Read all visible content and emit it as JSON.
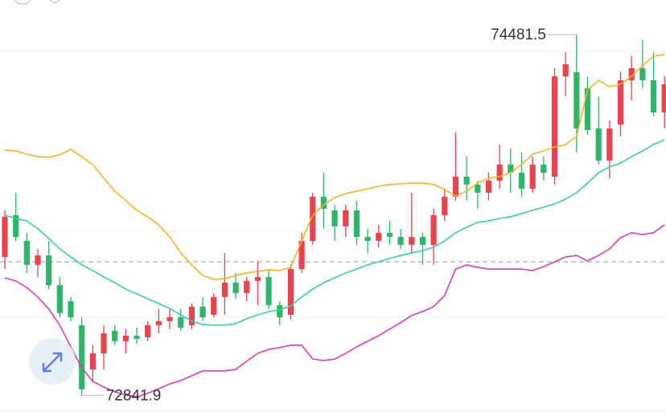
{
  "chart_data": {
    "type": "candlestick",
    "up_color": "#e8434f",
    "down_color": "#2fb56a",
    "ylim": [
      72748,
      74639
    ],
    "open": [
      73471,
      73661,
      73544,
      73435,
      73478,
      73343,
      73270,
      73161,
      72960,
      73033,
      73135,
      73088,
      73113,
      73106,
      73161,
      73179,
      73197,
      73161,
      73245,
      73208,
      73289,
      73354,
      73307,
      73362,
      73380,
      73252,
      73208,
      73416,
      73544,
      73745,
      73683,
      73610,
      73683,
      73562,
      73544,
      73581,
      73562,
      73526,
      73562,
      73526,
      73661,
      73745,
      73836,
      73800,
      73763,
      73818,
      73891,
      73854,
      73781,
      73891,
      73836,
      74292,
      74311,
      74238,
      74055,
      73909,
      74073,
      74274,
      74329,
      74274,
      74128
    ],
    "high": [
      73683,
      73763,
      73581,
      73508,
      73544,
      73380,
      73289,
      73197,
      73070,
      73161,
      73161,
      73143,
      73150,
      73179,
      73234,
      73234,
      73234,
      73259,
      73289,
      73307,
      73489,
      73398,
      73380,
      73453,
      73416,
      73270,
      73435,
      73581,
      73763,
      73854,
      73708,
      73708,
      73727,
      73599,
      73617,
      73635,
      73599,
      73763,
      73581,
      73690,
      73781,
      74037,
      73927,
      73818,
      73854,
      73982,
      73964,
      73946,
      73927,
      73927,
      74329,
      74402,
      74481.5,
      74292,
      74201,
      74092,
      74311,
      74384,
      74457,
      74402,
      74292
    ],
    "low": [
      73416,
      73544,
      73398,
      73380,
      73325,
      73197,
      73179,
      72841.9,
      72905,
      72960,
      73070,
      73033,
      73077,
      73088,
      73124,
      73143,
      73135,
      73143,
      73179,
      73197,
      73208,
      73281,
      73270,
      73252,
      73234,
      73161,
      73186,
      73398,
      73526,
      73599,
      73544,
      73562,
      73526,
      73489,
      73515,
      73526,
      73508,
      73489,
      73435,
      73435,
      73635,
      73727,
      73727,
      73690,
      73727,
      73781,
      73763,
      73745,
      73763,
      73818,
      73800,
      74201,
      73946,
      74026,
      73891,
      73829,
      74019,
      74183,
      74238,
      74110,
      74055
    ],
    "close": [
      73654,
      73562,
      73435,
      73478,
      73343,
      73216,
      73197,
      72869,
      73033,
      73124,
      73088,
      73113,
      73099,
      73161,
      73179,
      73197,
      73150,
      73245,
      73197,
      73289,
      73354,
      73307,
      73362,
      73380,
      73252,
      73197,
      73416,
      73544,
      73745,
      73690,
      73610,
      73683,
      73562,
      73544,
      73581,
      73562,
      73526,
      73562,
      73526,
      73661,
      73745,
      73836,
      73800,
      73763,
      73818,
      73891,
      73854,
      73781,
      73891,
      73854,
      74292,
      74347,
      74055,
      74048,
      73909,
      74055,
      74274,
      74329,
      74274,
      74128,
      74256
    ],
    "series": [
      {
        "color": "#efb42a",
        "values": [
          73956,
          73953,
          73938,
          73927,
          73924,
          73935,
          73960,
          73927,
          73891,
          73829,
          73770,
          73727,
          73683,
          73654,
          73617,
          73562,
          73489,
          73435,
          73387,
          73369,
          73372,
          73387,
          73398,
          73405,
          73413,
          73409,
          73424,
          73544,
          73661,
          73708,
          73741,
          73759,
          73770,
          73781,
          73792,
          73800,
          73803,
          73807,
          73807,
          73800,
          73778,
          73748,
          73770,
          73807,
          73829,
          73836,
          73854,
          73891,
          73938,
          73953,
          73971,
          73982,
          74019,
          74230,
          74274,
          74245,
          74256,
          74292,
          74340,
          74384,
          74391
        ]
      },
      {
        "color": "#3ccba5",
        "values": [
          73661,
          73646,
          73635,
          73599,
          73555,
          73508,
          73471,
          73435,
          73409,
          73380,
          73354,
          73325,
          73303,
          73281,
          73259,
          73237,
          73208,
          73179,
          73164,
          73161,
          73161,
          73168,
          73190,
          73208,
          73223,
          73230,
          73248,
          73289,
          73325,
          73354,
          73376,
          73398,
          73416,
          73435,
          73449,
          73464,
          73478,
          73489,
          73500,
          73515,
          73544,
          73581,
          73606,
          73628,
          73635,
          73646,
          73654,
          73668,
          73683,
          73697,
          73712,
          73734,
          73763,
          73807,
          73854,
          73880,
          73898,
          73927,
          73953,
          73982,
          74004
        ]
      },
      {
        "color": "#d63fb5",
        "values": [
          73376,
          73362,
          73332,
          73289,
          73234,
          73161,
          73062,
          72967,
          72905,
          72880,
          72858,
          72843,
          72836,
          72851,
          72872,
          72894,
          72909,
          72931,
          72953,
          72953,
          72953,
          72960,
          72997,
          73033,
          73051,
          73059,
          73070,
          73070,
          73007,
          73000,
          73007,
          73033,
          73062,
          73088,
          73113,
          73143,
          73172,
          73205,
          73223,
          73245,
          73296,
          73416,
          73435,
          73424,
          73416,
          73416,
          73416,
          73416,
          73409,
          73427,
          73449,
          73471,
          73478,
          73453,
          73478,
          73508,
          73559,
          73581,
          73573,
          73581,
          73617
        ]
      }
    ],
    "price_line": 73449
  }
}
